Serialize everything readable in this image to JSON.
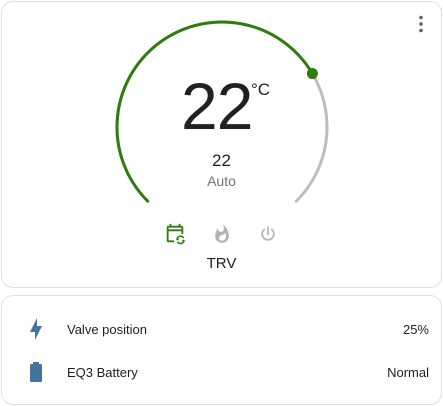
{
  "thermostat": {
    "current_temperature": "22",
    "unit": "°C",
    "target_temperature": "22",
    "hvac_mode": "Auto",
    "name": "TRV",
    "setpoint_fraction": 0.72,
    "colors": {
      "active": "#2e7d0e",
      "track": "#bdbdbd",
      "inactive_icon": "#b3b3b3"
    },
    "modes": [
      {
        "icon": "calendar-sync-icon",
        "active": true
      },
      {
        "icon": "fire-icon",
        "active": false
      },
      {
        "icon": "power-icon",
        "active": false
      }
    ]
  },
  "entities": {
    "icon_color": "#44739e",
    "rows": [
      {
        "icon": "lightning-bolt-icon",
        "label": "Valve position",
        "value": "25%"
      },
      {
        "icon": "battery-icon",
        "label": "EQ3 Battery",
        "value": "Normal"
      }
    ]
  }
}
